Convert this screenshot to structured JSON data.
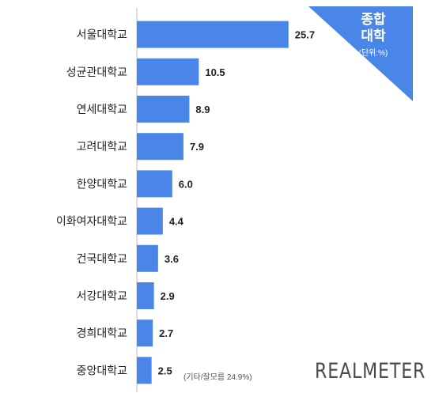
{
  "badge": {
    "title_line1": "종합",
    "title_line2": "대학",
    "unit": "(단위:%)"
  },
  "brand": "REALMETER",
  "footnote": "(기타/잘모름 24.9%)",
  "colors": {
    "bar": "#4a86e8",
    "badge": "#4a86e8",
    "axis": "#bfbfbf",
    "label": "#222222"
  },
  "chart_data": {
    "type": "bar",
    "orientation": "horizontal",
    "categories": [
      "서울대학교",
      "성균관대학교",
      "연세대학교",
      "고려대학교",
      "한양대학교",
      "이화여자대학교",
      "건국대학교",
      "서강대학교",
      "경희대학교",
      "중앙대학교"
    ],
    "values": [
      25.7,
      10.5,
      8.9,
      7.9,
      6.0,
      4.4,
      3.6,
      2.9,
      2.7,
      2.5
    ],
    "value_labels": [
      "25.7",
      "10.5",
      "8.9",
      "7.9",
      "6.0",
      "4.4",
      "3.6",
      "2.9",
      "2.7",
      "2.5"
    ],
    "xlim": [
      0,
      26
    ],
    "grid": false,
    "legend": "none"
  }
}
